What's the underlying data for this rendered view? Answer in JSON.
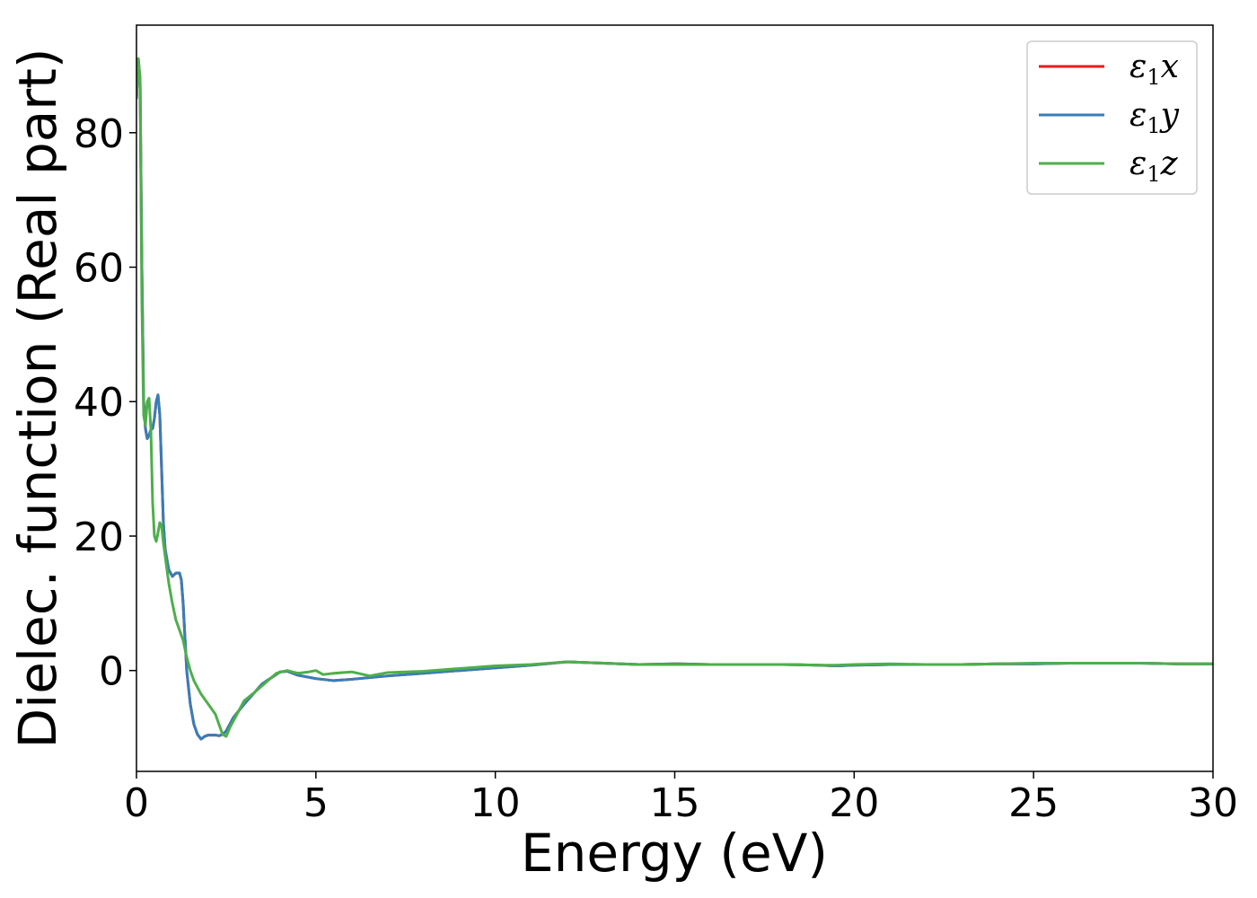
{
  "chart_data": {
    "type": "line",
    "title": "",
    "xlabel": "Energy (eV)",
    "ylabel": "Dielec. function (Real part)",
    "xlim": [
      0,
      30
    ],
    "ylim": [
      -15,
      96
    ],
    "x_ticks": [
      0,
      5,
      10,
      15,
      20,
      25,
      30
    ],
    "y_ticks": [
      0,
      20,
      40,
      60,
      80
    ],
    "grid": false,
    "legend_position": "top-right",
    "series": [
      {
        "name": "ε1x",
        "legend_symbol": "ε",
        "legend_subscript": "1",
        "legend_suffix": "x",
        "color": "#e41a1c",
        "x": [
          0,
          0.05,
          0.1,
          0.15,
          0.2,
          0.25,
          0.3,
          0.35,
          0.4,
          0.45,
          0.5,
          0.55,
          0.6,
          0.65,
          0.7,
          0.75,
          0.8,
          0.85,
          0.9,
          1.0,
          1.1,
          1.2,
          1.25,
          1.3,
          1.35,
          1.4,
          1.5,
          1.6,
          1.7,
          1.8,
          1.9,
          2.0,
          2.1,
          2.2,
          2.3,
          2.4,
          2.5,
          2.7,
          3.0,
          3.5,
          4.0,
          4.2,
          4.5,
          5.0,
          5.5,
          6.0,
          7.0,
          8.0,
          9.0,
          10.0,
          11.0,
          12.0,
          13.0,
          14.0,
          15.0,
          16.0,
          17.0,
          18.0,
          19.0,
          19.5,
          20.0,
          21.0,
          22.0,
          23.0,
          24.0,
          25.0,
          26.0,
          27.0,
          28.0,
          29.0,
          30.0
        ],
        "values": [
          85,
          91,
          88,
          60,
          40,
          36,
          34.5,
          35,
          35.8,
          36,
          37.5,
          40,
          41,
          38,
          30,
          22,
          18,
          16.5,
          15,
          14,
          14.5,
          14.5,
          13.5,
          10,
          5,
          0,
          -5,
          -8,
          -9.5,
          -10.2,
          -9.8,
          -9.6,
          -9.6,
          -9.6,
          -9.7,
          -9.5,
          -9,
          -7,
          -5,
          -2,
          -0.2,
          -0.1,
          -0.7,
          -1.2,
          -1.5,
          -1.3,
          -0.8,
          -0.4,
          0,
          0.4,
          0.8,
          1.3,
          1.1,
          0.9,
          1.0,
          0.9,
          0.9,
          0.9,
          0.8,
          0.7,
          0.8,
          0.9,
          0.9,
          0.9,
          1.0,
          1.0,
          1.1,
          1.1,
          1.1,
          1.0,
          1.0
        ]
      },
      {
        "name": "ε1y",
        "legend_symbol": "ε",
        "legend_subscript": "1",
        "legend_suffix": "y",
        "color": "#377eb8",
        "x": [
          0,
          0.05,
          0.1,
          0.15,
          0.2,
          0.25,
          0.3,
          0.35,
          0.4,
          0.45,
          0.5,
          0.55,
          0.6,
          0.65,
          0.7,
          0.75,
          0.8,
          0.85,
          0.9,
          1.0,
          1.1,
          1.2,
          1.25,
          1.3,
          1.35,
          1.4,
          1.5,
          1.6,
          1.7,
          1.8,
          1.9,
          2.0,
          2.1,
          2.2,
          2.3,
          2.4,
          2.5,
          2.7,
          3.0,
          3.5,
          4.0,
          4.2,
          4.5,
          5.0,
          5.5,
          6.0,
          7.0,
          8.0,
          9.0,
          10.0,
          11.0,
          12.0,
          13.0,
          14.0,
          15.0,
          16.0,
          17.0,
          18.0,
          19.0,
          19.5,
          20.0,
          21.0,
          22.0,
          23.0,
          24.0,
          25.0,
          26.0,
          27.0,
          28.0,
          29.0,
          30.0
        ],
        "values": [
          85,
          91,
          88,
          60,
          40,
          36,
          34.5,
          35,
          35.8,
          36,
          37.5,
          40,
          41,
          38,
          30,
          22,
          18,
          16.5,
          15,
          14,
          14.5,
          14.5,
          13.5,
          10,
          5,
          0,
          -5,
          -8,
          -9.5,
          -10.2,
          -9.8,
          -9.6,
          -9.6,
          -9.6,
          -9.7,
          -9.5,
          -9,
          -7,
          -5,
          -2,
          -0.2,
          -0.1,
          -0.7,
          -1.2,
          -1.5,
          -1.3,
          -0.8,
          -0.4,
          0,
          0.4,
          0.8,
          1.3,
          1.1,
          0.9,
          1.0,
          0.9,
          0.9,
          0.9,
          0.8,
          0.7,
          0.8,
          0.9,
          0.9,
          0.9,
          1.0,
          1.0,
          1.1,
          1.1,
          1.1,
          1.0,
          1.0
        ]
      },
      {
        "name": "ε1z",
        "legend_symbol": "ε",
        "legend_subscript": "1",
        "legend_suffix": "z",
        "color": "#4daf4a",
        "x": [
          0,
          0.05,
          0.1,
          0.15,
          0.2,
          0.25,
          0.3,
          0.35,
          0.4,
          0.45,
          0.5,
          0.55,
          0.6,
          0.65,
          0.7,
          0.75,
          0.8,
          0.9,
          1.0,
          1.1,
          1.2,
          1.3,
          1.4,
          1.5,
          1.6,
          1.7,
          1.8,
          2.0,
          2.2,
          2.3,
          2.4,
          2.5,
          2.6,
          2.8,
          3.0,
          3.3,
          3.6,
          3.9,
          4.2,
          4.5,
          4.8,
          5.0,
          5.2,
          5.5,
          6.0,
          6.5,
          7.0,
          7.5,
          8.0,
          9.0,
          10.0,
          11.0,
          12.0,
          13.0,
          14.0,
          15.0,
          16.0,
          17.0,
          18.0,
          19.0,
          19.5,
          20.0,
          21.0,
          22.0,
          23.0,
          24.0,
          25.0,
          26.0,
          27.0,
          28.0,
          29.0,
          30.0
        ],
        "values": [
          85,
          91,
          88,
          55,
          38,
          36.5,
          40,
          40.5,
          36,
          25,
          20,
          19.2,
          20.5,
          22,
          21.5,
          19,
          17,
          13,
          10,
          7.5,
          6,
          4.5,
          2,
          0,
          -1.5,
          -2.5,
          -3.5,
          -5,
          -6.5,
          -8,
          -9.5,
          -9.8,
          -8.5,
          -6.5,
          -4.5,
          -3.2,
          -1.8,
          -0.4,
          0,
          -0.4,
          -0.2,
          0,
          -0.6,
          -0.4,
          -0.2,
          -0.8,
          -0.3,
          -0.2,
          -0.1,
          0.3,
          0.7,
          0.9,
          1.3,
          1.1,
          0.9,
          0.9,
          0.9,
          0.9,
          0.9,
          0.8,
          0.8,
          0.9,
          1.0,
          0.9,
          0.9,
          1.0,
          1.1,
          1.1,
          1.1,
          1.1,
          1.0,
          1.0
        ]
      }
    ]
  }
}
